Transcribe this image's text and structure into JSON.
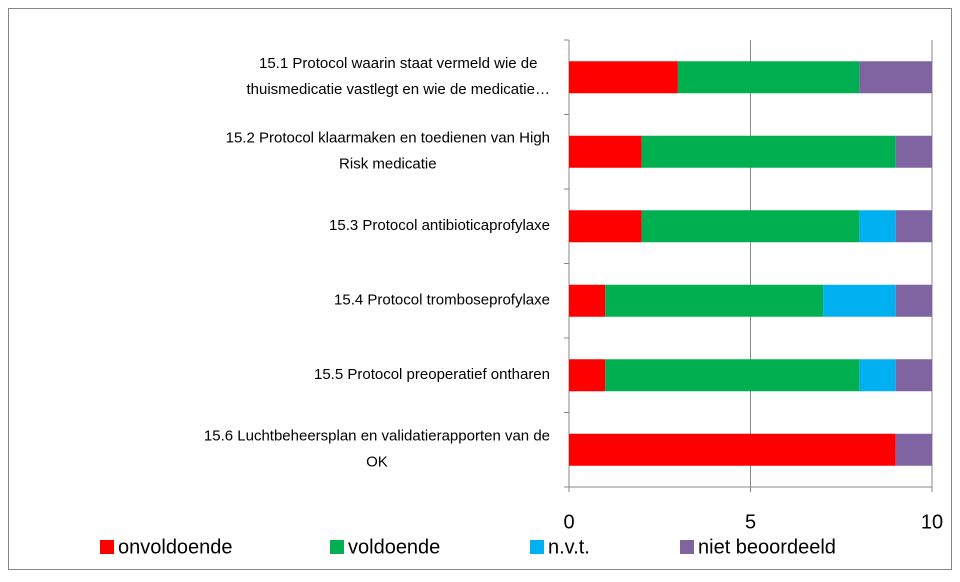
{
  "chart_data": {
    "type": "stacked-bar-horizontal",
    "categories": [
      [
        "15.1 Protocol waarin staat vermeld wie de",
        "thuismedicatie vastlegt en wie de medicatie…"
      ],
      [
        "15.2 Protocol klaarmaken en toedienen van High",
        "Risk medicatie"
      ],
      [
        "15.3 Protocol antibioticaprofylaxe"
      ],
      [
        "15.4 Protocol tromboseprofylaxe"
      ],
      [
        "15.5 Protocol preoperatief ontharen"
      ],
      [
        "15.6 Luchtbeheersplan en validatierapporten van de",
        "OK"
      ]
    ],
    "series": [
      {
        "name": "onvoldoende",
        "color": "#ff0000",
        "values": [
          3,
          2,
          2,
          1,
          1,
          9
        ]
      },
      {
        "name": "voldoende",
        "color": "#00b050",
        "values": [
          5,
          7,
          6,
          6,
          7,
          0
        ]
      },
      {
        "name": "n.v.t.",
        "color": "#00b0f0",
        "values": [
          0,
          0,
          1,
          2,
          1,
          0
        ]
      },
      {
        "name": "niet beoordeeld",
        "color": "#8064a2",
        "values": [
          2,
          1,
          1,
          1,
          1,
          1
        ]
      }
    ],
    "xlim": [
      0,
      10
    ],
    "xticks": [
      0,
      5,
      10
    ],
    "grid": true,
    "legend": "bottom"
  }
}
